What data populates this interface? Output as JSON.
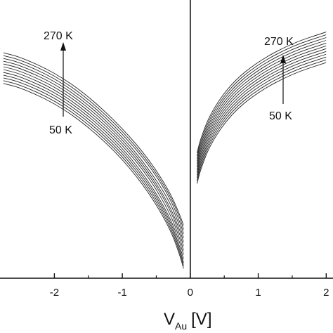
{
  "chart_data": {
    "type": "line",
    "title": "",
    "xlabel": "V",
    "xlabel_sub": "Au",
    "xlabel_unit": "[V]",
    "ylabel": "",
    "xlim": [
      -2.8,
      2.1
    ],
    "ylim": [
      -1.0,
      1.0
    ],
    "grid": false,
    "x_ticks": [
      -2,
      -1,
      0,
      1,
      2
    ],
    "x_tick_labels": [
      "-2",
      "-1",
      "0",
      "1",
      "2"
    ],
    "annotations": [
      {
        "text": "270 K",
        "side": "left",
        "role": "top"
      },
      {
        "text": "50 K",
        "side": "left",
        "role": "bottom"
      },
      {
        "text": "270 K",
        "side": "right",
        "role": "top"
      },
      {
        "text": "50 K",
        "side": "right",
        "role": "bottom"
      }
    ],
    "series": [
      {
        "temperature_index": 0,
        "x": [
          -2.75,
          -2.5,
          -2.0,
          -1.5,
          -1.0,
          -0.6,
          -0.3,
          -0.15,
          -0.1,
          0.1,
          0.15,
          0.3,
          0.6,
          1.0,
          1.5,
          2.0
        ],
        "y": [
          0.62,
          0.59,
          0.48,
          0.31,
          0.08,
          -0.15,
          -0.38,
          -0.55,
          -0.62,
          -0.32,
          -0.22,
          -0.03,
          0.18,
          0.34,
          0.47,
          0.55
        ]
      },
      {
        "temperature_index": 1,
        "x": [
          -2.75,
          -2.5,
          -2.0,
          -1.5,
          -1.0,
          -0.6,
          -0.3,
          -0.15,
          -0.1,
          0.1,
          0.15,
          0.3,
          0.6,
          1.0,
          1.5,
          2.0
        ],
        "y": [
          0.6,
          0.57,
          0.46,
          0.29,
          0.06,
          -0.17,
          -0.4,
          -0.57,
          -0.65,
          -0.3,
          -0.2,
          -0.01,
          0.2,
          0.36,
          0.49,
          0.57
        ]
      },
      {
        "temperature_index": 2,
        "x": [
          -2.75,
          -2.5,
          -2.0,
          -1.5,
          -1.0,
          -0.6,
          -0.3,
          -0.15,
          -0.1,
          0.1,
          0.15,
          0.3,
          0.6,
          1.0,
          1.5,
          2.0
        ],
        "y": [
          0.58,
          0.55,
          0.44,
          0.27,
          0.04,
          -0.19,
          -0.42,
          -0.6,
          -0.68,
          -0.28,
          -0.18,
          0.01,
          0.22,
          0.38,
          0.51,
          0.59
        ]
      },
      {
        "temperature_index": 3,
        "x": [
          -2.75,
          -2.5,
          -2.0,
          -1.5,
          -1.0,
          -0.6,
          -0.3,
          -0.15,
          -0.1,
          0.1,
          0.15,
          0.3,
          0.6,
          1.0,
          1.5,
          2.0
        ],
        "y": [
          0.56,
          0.53,
          0.42,
          0.25,
          0.02,
          -0.22,
          -0.45,
          -0.63,
          -0.71,
          -0.26,
          -0.16,
          0.03,
          0.24,
          0.4,
          0.53,
          0.61
        ]
      },
      {
        "temperature_index": 4,
        "x": [
          -2.75,
          -2.5,
          -2.0,
          -1.5,
          -1.0,
          -0.6,
          -0.3,
          -0.15,
          -0.1,
          0.1,
          0.15,
          0.3,
          0.6,
          1.0,
          1.5,
          2.0
        ],
        "y": [
          0.54,
          0.51,
          0.4,
          0.23,
          0.0,
          -0.24,
          -0.48,
          -0.66,
          -0.74,
          -0.24,
          -0.14,
          0.05,
          0.26,
          0.42,
          0.55,
          0.63
        ]
      },
      {
        "temperature_index": 5,
        "x": [
          -2.75,
          -2.5,
          -2.0,
          -1.5,
          -1.0,
          -0.6,
          -0.3,
          -0.15,
          -0.1,
          0.1,
          0.15,
          0.3,
          0.6,
          1.0,
          1.5,
          2.0
        ],
        "y": [
          0.52,
          0.49,
          0.38,
          0.21,
          -0.02,
          -0.26,
          -0.5,
          -0.69,
          -0.77,
          -0.22,
          -0.12,
          0.07,
          0.28,
          0.44,
          0.57,
          0.65
        ]
      },
      {
        "temperature_index": 6,
        "x": [
          -2.75,
          -2.5,
          -2.0,
          -1.5,
          -1.0,
          -0.6,
          -0.3,
          -0.15,
          -0.1,
          0.1,
          0.15,
          0.3,
          0.6,
          1.0,
          1.5,
          2.0
        ],
        "y": [
          0.5,
          0.47,
          0.36,
          0.19,
          -0.04,
          -0.28,
          -0.53,
          -0.72,
          -0.8,
          -0.2,
          -0.1,
          0.09,
          0.3,
          0.46,
          0.59,
          0.67
        ]
      },
      {
        "temperature_index": 7,
        "x": [
          -2.75,
          -2.5,
          -2.0,
          -1.5,
          -1.0,
          -0.6,
          -0.3,
          -0.15,
          -0.1,
          0.1,
          0.15,
          0.3,
          0.6,
          1.0,
          1.5,
          2.0
        ],
        "y": [
          0.48,
          0.45,
          0.34,
          0.17,
          -0.06,
          -0.31,
          -0.56,
          -0.75,
          -0.83,
          -0.18,
          -0.08,
          0.11,
          0.32,
          0.48,
          0.61,
          0.69
        ]
      },
      {
        "temperature_index": 8,
        "x": [
          -2.75,
          -2.5,
          -2.0,
          -1.5,
          -1.0,
          -0.6,
          -0.3,
          -0.15,
          -0.1,
          0.1,
          0.15,
          0.3,
          0.6,
          1.0,
          1.5,
          2.0
        ],
        "y": [
          0.46,
          0.43,
          0.32,
          0.15,
          -0.08,
          -0.33,
          -0.58,
          -0.78,
          -0.86,
          -0.16,
          -0.06,
          0.13,
          0.34,
          0.5,
          0.63,
          0.71
        ]
      },
      {
        "temperature_index": 9,
        "x": [
          -2.75,
          -2.5,
          -2.0,
          -1.5,
          -1.0,
          -0.6,
          -0.3,
          -0.15,
          -0.1,
          0.1,
          0.15,
          0.3,
          0.6,
          1.0,
          1.5,
          2.0
        ],
        "y": [
          0.44,
          0.41,
          0.3,
          0.13,
          -0.1,
          -0.35,
          -0.6,
          -0.8,
          -0.89,
          -0.14,
          -0.04,
          0.15,
          0.36,
          0.52,
          0.65,
          0.73
        ]
      },
      {
        "temperature_index": 10,
        "x": [
          -2.75,
          -2.5,
          -2.0,
          -1.5,
          -1.0,
          -0.6,
          -0.3,
          -0.15,
          -0.1,
          0.1,
          0.15,
          0.3,
          0.6,
          1.0,
          1.5,
          2.0
        ],
        "y": [
          0.42,
          0.39,
          0.28,
          0.11,
          -0.12,
          -0.37,
          -0.62,
          -0.82,
          -0.91,
          -0.12,
          -0.02,
          0.17,
          0.38,
          0.54,
          0.67,
          0.75
        ]
      },
      {
        "temperature_index": 11,
        "x": [
          -2.75,
          -2.5,
          -2.0,
          -1.5,
          -1.0,
          -0.6,
          -0.3,
          -0.15,
          -0.1,
          0.1,
          0.15,
          0.3,
          0.6,
          1.0,
          1.5,
          2.0
        ],
        "y": [
          0.4,
          0.37,
          0.26,
          0.09,
          -0.14,
          -0.39,
          -0.64,
          -0.84,
          -0.93,
          -0.1,
          0.0,
          0.19,
          0.4,
          0.56,
          0.69,
          0.77
        ]
      }
    ]
  }
}
